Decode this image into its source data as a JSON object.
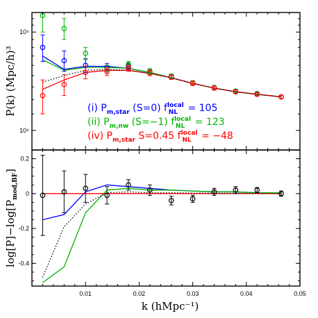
{
  "chart_data": [
    {
      "type": "line",
      "panel": "top",
      "ylabel": "P(k)  (Mpc/h)³",
      "yscale": "log",
      "xlim": [
        0.0,
        0.05
      ],
      "ylim": [
        5000,
        18000
      ],
      "yticks": [
        {
          "value": 6000,
          "label": "10⁴"
        },
        {
          "value": 15000,
          "label": "10⁴"
        }
      ],
      "legend": {
        "placement": "center",
        "entries": [
          {
            "color": "#0000ff",
            "prefix": "(i)  P",
            "sub": "m,star",
            "mid": " (S=0)  f",
            "sup": "local",
            "sub2": "NL",
            "value": " = 105"
          },
          {
            "color": "#00b400",
            "prefix": "(ii)  P",
            "sub": "m,nw",
            "mid": "  (S=−1)  f",
            "sup": "local",
            "sub2": "NL",
            "value": " = 123"
          },
          {
            "color": "#ff0000",
            "prefix": "(iv)  P",
            "sub": "m,star",
            "mid": "  S=0.45  f",
            "sup": "local",
            "sub2": "NL",
            "value": " = −48"
          }
        ]
      },
      "series": [
        {
          "style": "blue",
          "x": [
            0.002,
            0.006,
            0.01,
            0.014,
            0.018,
            0.022,
            0.026,
            0.03,
            0.034,
            0.038,
            0.042,
            0.0465
          ],
          "y": [
            12000,
            10600,
            10900,
            10900,
            10700,
            10300,
            9800,
            9300,
            8900,
            8600,
            8400,
            8200
          ]
        },
        {
          "style": "green",
          "x": [
            0.002,
            0.006,
            0.01,
            0.014,
            0.018,
            0.022,
            0.026,
            0.03,
            0.034,
            0.038,
            0.042,
            0.0465
          ],
          "y": [
            11600,
            10500,
            10800,
            10800,
            10700,
            10300,
            9800,
            9300,
            8900,
            8600,
            8400,
            8200
          ]
        },
        {
          "style": "red",
          "x": [
            0.002,
            0.006,
            0.01,
            0.014,
            0.018,
            0.022,
            0.026,
            0.03,
            0.034,
            0.038,
            0.042,
            0.0465
          ],
          "y": [
            8800,
            9600,
            10300,
            10500,
            10500,
            10200,
            9800,
            9300,
            8900,
            8600,
            8400,
            8200
          ]
        },
        {
          "style": "black-dotted",
          "x": [
            0.002,
            0.006,
            0.01,
            0.014,
            0.018,
            0.022,
            0.026,
            0.03,
            0.034,
            0.038,
            0.042,
            0.0465
          ],
          "y": [
            9400,
            10000,
            10500,
            10600,
            10500,
            10200,
            9800,
            9300,
            8900,
            8600,
            8400,
            8200
          ]
        }
      ],
      "points": [
        {
          "color": "#0000ff",
          "x": [
            0.002,
            0.006,
            0.01,
            0.014,
            0.018,
            0.022,
            0.026,
            0.03,
            0.034,
            0.038,
            0.042,
            0.0465
          ],
          "y": [
            13000,
            11500,
            11000,
            10800,
            10900,
            10400,
            9950,
            9350,
            8950,
            8650,
            8450,
            8200
          ],
          "err": [
            1600,
            1100,
            700,
            400,
            300,
            250,
            200,
            180,
            160,
            150,
            140,
            130
          ]
        },
        {
          "color": "#00b400",
          "x": [
            0.002,
            0.006,
            0.01,
            0.014,
            0.018,
            0.022,
            0.026,
            0.03,
            0.034,
            0.038,
            0.042,
            0.0465
          ],
          "y": [
            17500,
            15500,
            12300,
            10600,
            11100,
            10400,
            9950,
            9350,
            8950,
            8650,
            8450,
            8200
          ],
          "err": [
            2500,
            1500,
            700,
            400,
            300,
            250,
            200,
            180,
            160,
            150,
            140,
            130
          ]
        },
        {
          "color": "#ff0000",
          "x": [
            0.002,
            0.006,
            0.01,
            0.014,
            0.018,
            0.022,
            0.026,
            0.03,
            0.034,
            0.038,
            0.042,
            0.0465
          ],
          "y": [
            8300,
            9200,
            10300,
            10400,
            10700,
            10250,
            9850,
            9300,
            8900,
            8600,
            8400,
            8200
          ],
          "err": [
            1300,
            900,
            600,
            400,
            300,
            250,
            200,
            180,
            160,
            150,
            140,
            130
          ]
        }
      ]
    },
    {
      "type": "line",
      "panel": "bottom",
      "xlabel": "k  (hMpc⁻¹)",
      "ylabel": "log[P]−log[P",
      "ylabel_sub": "mod,BF",
      "ylabel_end": "]",
      "xlim": [
        0.0,
        0.05
      ],
      "ylim": [
        -0.53,
        0.25
      ],
      "xticks": [
        {
          "value": 0.01,
          "label": "0.01"
        },
        {
          "value": 0.02,
          "label": "0.02"
        },
        {
          "value": 0.03,
          "label": "0.03"
        },
        {
          "value": 0.04,
          "label": "0.04"
        },
        {
          "value": 0.05,
          "label": "0.05"
        }
      ],
      "yticks": [
        {
          "value": 0.2,
          "label": "0.2"
        },
        {
          "value": 0,
          "label": "0"
        },
        {
          "value": -0.2,
          "label": "-0.2"
        },
        {
          "value": -0.4,
          "label": "-0.4"
        }
      ],
      "series": [
        {
          "style": "blue",
          "x": [
            0.002,
            0.006,
            0.01,
            0.014,
            0.018,
            0.022,
            0.026,
            0.03,
            0.034,
            0.038,
            0.042,
            0.0465
          ],
          "y": [
            -0.15,
            -0.12,
            0.01,
            0.05,
            0.04,
            0.03,
            0.02,
            0.015,
            0.01,
            0.01,
            0.005,
            0.005
          ]
        },
        {
          "style": "green",
          "x": [
            0.002,
            0.006,
            0.01,
            0.014,
            0.018,
            0.022,
            0.026,
            0.03,
            0.034,
            0.038,
            0.042,
            0.0465
          ],
          "y": [
            -0.51,
            -0.42,
            -0.11,
            0.02,
            0.03,
            0.02,
            0.02,
            0.015,
            0.01,
            0.01,
            0.005,
            0.005
          ]
        },
        {
          "style": "red",
          "x": [
            0.002,
            0.006,
            0.01,
            0.014,
            0.018,
            0.022,
            0.026,
            0.03,
            0.034,
            0.038,
            0.042,
            0.0465
          ],
          "y": [
            0,
            0,
            0,
            0,
            0,
            0,
            0,
            0,
            0,
            0,
            0,
            0
          ]
        },
        {
          "style": "black-dotted",
          "x": [
            0.002,
            0.006,
            0.01,
            0.014,
            0.018,
            0.022,
            0.026,
            0.03,
            0.034,
            0.038,
            0.042,
            0.0465
          ],
          "y": [
            -0.48,
            -0.19,
            -0.06,
            0.005,
            0.01,
            0.005,
            0.005,
            0.003,
            0.002,
            0.002,
            0.001,
            0.001
          ]
        }
      ],
      "points": [
        {
          "color": "#000000",
          "x": [
            0.002,
            0.006,
            0.01,
            0.014,
            0.018,
            0.022,
            0.026,
            0.03,
            0.034,
            0.038,
            0.042,
            0.0465
          ],
          "y": [
            -0.01,
            0.01,
            0.03,
            -0.01,
            0.05,
            0.02,
            -0.04,
            -0.03,
            0.01,
            0.02,
            0.02,
            0.0
          ],
          "err": [
            0.23,
            0.12,
            0.08,
            0.05,
            0.03,
            0.03,
            0.025,
            0.02,
            0.02,
            0.02,
            0.015,
            0.015
          ]
        }
      ]
    }
  ]
}
